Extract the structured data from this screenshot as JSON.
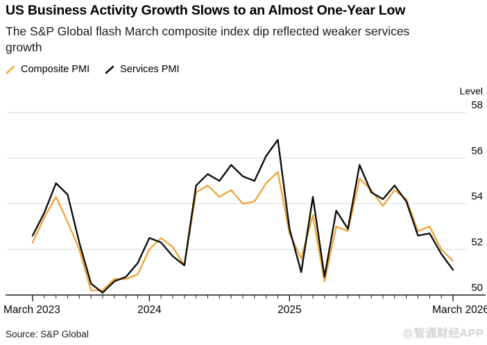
{
  "header": {
    "title": "US Business Activity Growth Slows to an Almost One-Year Low",
    "subtitle": "The S&P Global flash March composite index dip reflected weaker services growth"
  },
  "legend": {
    "items": [
      {
        "label": "Composite PMI",
        "color": "#EFA63C"
      },
      {
        "label": "Services PMI",
        "color": "#0d0d0d"
      }
    ]
  },
  "footer": {
    "source": "Source: S&P Global",
    "watermark": "@智通财经APP"
  },
  "colors": {
    "composite_line": "#EFA63C",
    "services_line": "#0d0d0d",
    "gridline": "#d9d9d9",
    "axis": "#1a1a1a",
    "label": "#000000"
  },
  "chart_data": {
    "type": "line",
    "title": "US Business Activity Growth Slows to an Almost One-Year Low",
    "ylabel": "Level",
    "xlabel": "",
    "grid": "horizontal",
    "legend_position": "top-left",
    "ylim": [
      49.4,
      59.0
    ],
    "yticks": [
      50,
      52,
      54,
      56,
      58
    ],
    "x": [
      "2023-03",
      "2023-04",
      "2023-05",
      "2023-06",
      "2023-07",
      "2023-08",
      "2023-09",
      "2023-10",
      "2023-11",
      "2023-12",
      "2024-01",
      "2024-02",
      "2024-03",
      "2024-04",
      "2024-05",
      "2024-06",
      "2024-07",
      "2024-08",
      "2024-09",
      "2024-10",
      "2024-11",
      "2024-12",
      "2025-01",
      "2025-02",
      "2025-03",
      "2025-04",
      "2025-05",
      "2025-06",
      "2025-07",
      "2025-08",
      "2025-09",
      "2025-10",
      "2025-11",
      "2025-12",
      "2026-01",
      "2026-02",
      "2026-03"
    ],
    "xtick_major_indices": [
      0,
      10,
      22,
      36
    ],
    "xtick_labels": [
      "March 2023",
      "2024",
      "2025",
      "March 2026"
    ],
    "series": [
      {
        "name": "Composite PMI",
        "color": "#EFA63C",
        "values": [
          52.3,
          53.4,
          54.3,
          53.2,
          52.0,
          50.2,
          50.2,
          50.7,
          50.7,
          50.9,
          52.0,
          52.5,
          52.1,
          51.3,
          54.5,
          54.8,
          54.3,
          54.6,
          54.0,
          54.1,
          54.9,
          55.4,
          52.7,
          51.6,
          53.5,
          50.6,
          53.0,
          52.8,
          55.1,
          54.6,
          53.9,
          54.6,
          54.2,
          52.8,
          53.0,
          52.0,
          51.5
        ]
      },
      {
        "name": "Services PMI",
        "color": "#0d0d0d",
        "values": [
          52.6,
          53.6,
          54.9,
          54.4,
          52.3,
          50.5,
          50.1,
          50.6,
          50.8,
          51.4,
          52.5,
          52.3,
          51.7,
          51.3,
          54.8,
          55.3,
          55.0,
          55.7,
          55.2,
          55.0,
          56.1,
          56.8,
          52.9,
          51.0,
          54.3,
          50.8,
          53.7,
          52.9,
          55.7,
          54.5,
          54.2,
          54.8,
          54.1,
          52.6,
          52.7,
          51.8,
          51.1
        ]
      }
    ]
  }
}
